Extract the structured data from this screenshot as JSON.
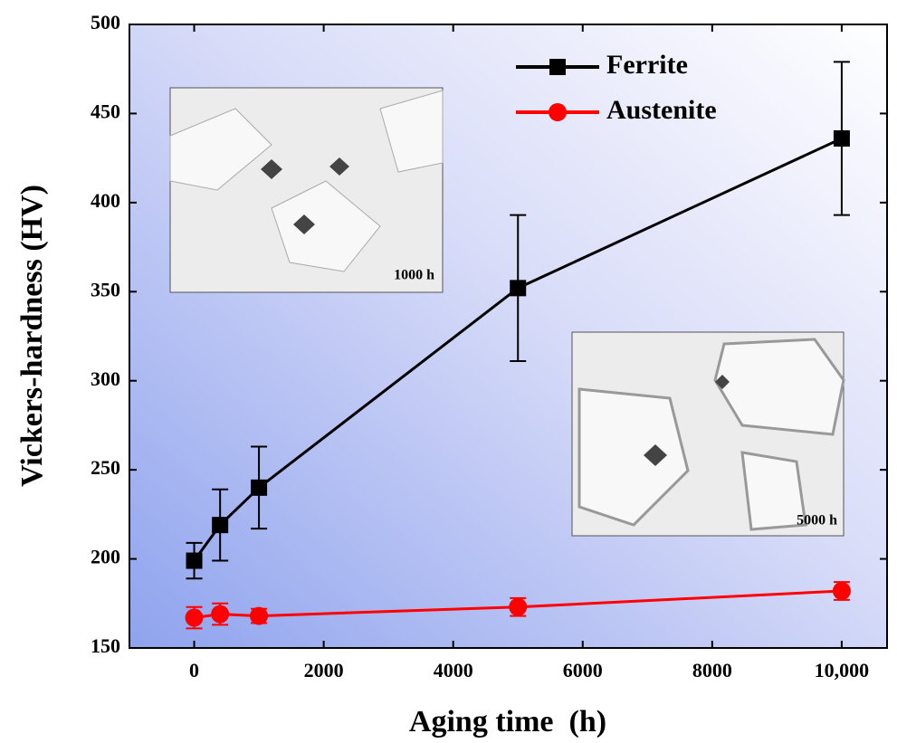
{
  "chart_data": {
    "type": "line",
    "xlabel": "Aging time  (h)",
    "ylabel": "Vickers-hardness (HV)",
    "x": [
      0,
      400,
      1000,
      5000,
      10000
    ],
    "series": [
      {
        "name": "Ferrite",
        "color": "#000000",
        "marker": "square",
        "values": [
          199,
          219,
          240,
          352,
          436
        ],
        "errors": [
          10,
          20,
          23,
          41,
          43
        ]
      },
      {
        "name": "Austenite",
        "color": "#ff0000",
        "marker": "circle",
        "values": [
          167,
          169,
          168,
          173,
          182
        ],
        "errors": [
          6,
          6,
          4,
          5,
          5
        ]
      }
    ],
    "xlim": [
      -1000,
      10700
    ],
    "ylim": [
      150,
      500
    ],
    "xticks": [
      0,
      2000,
      4000,
      6000,
      8000,
      {
        "value": 10000,
        "label": "10,000"
      }
    ],
    "yticks": [
      150,
      200,
      250,
      300,
      350,
      400,
      450,
      500
    ],
    "legend": "upper right",
    "annotations": [
      "1000 h",
      "5000 h"
    ]
  }
}
